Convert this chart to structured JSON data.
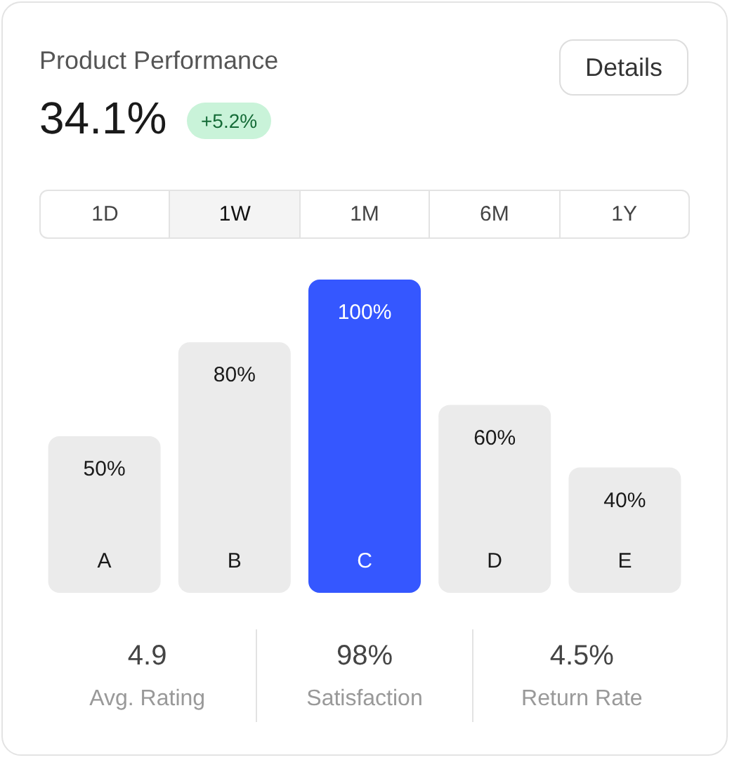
{
  "chart_data": {
    "type": "bar",
    "title": "Product Performance",
    "subtitle": "34.1%",
    "categories": [
      "A",
      "B",
      "C",
      "D",
      "E"
    ],
    "values": [
      50,
      80,
      100,
      60,
      40
    ],
    "value_labels": [
      "50%",
      "80%",
      "100%",
      "60%",
      "40%"
    ],
    "colors": [
      "#ebebeb",
      "#ebebeb",
      "#3557ff",
      "#ebebeb",
      "#ebebeb"
    ],
    "ylim": [
      0,
      100
    ],
    "annotations": [
      "+5.2%",
      "Details",
      "1D",
      "1W",
      "1M",
      "6M",
      "1Y",
      "4.9",
      "Avg. Rating",
      "98%",
      "Satisfaction",
      "4.5%",
      "Return Rate"
    ]
  }
}
